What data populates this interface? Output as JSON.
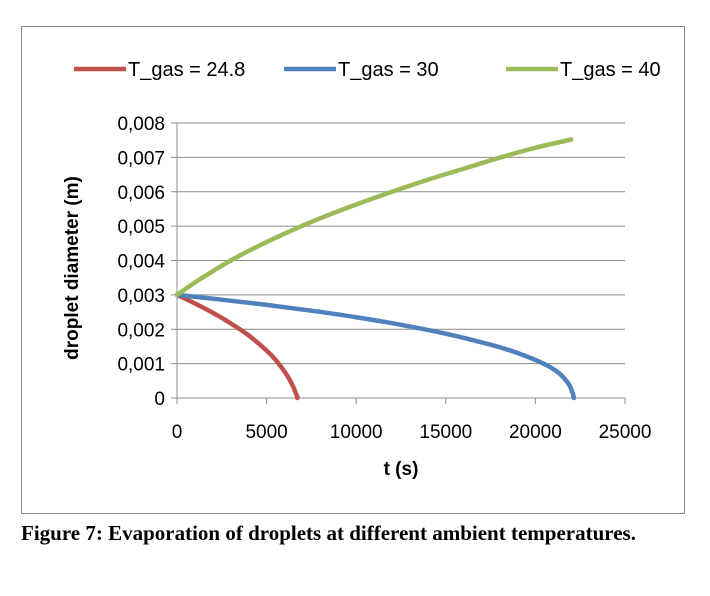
{
  "chart_data": {
    "type": "line",
    "title": "",
    "xlabel": "t (s)",
    "ylabel": "droplet diameter (m)",
    "xlim": [
      0,
      25000
    ],
    "ylim": [
      0,
      0.008
    ],
    "x_ticks": [
      0,
      5000,
      10000,
      15000,
      20000,
      25000
    ],
    "x_tick_labels": [
      "0",
      "5000",
      "10000",
      "15000",
      "20000",
      "25000"
    ],
    "y_ticks": [
      0,
      0.001,
      0.002,
      0.003,
      0.004,
      0.005,
      0.006,
      0.007,
      0.008
    ],
    "y_tick_labels": [
      "0",
      "0,001",
      "0,002",
      "0,003",
      "0,004",
      "0,005",
      "0,006",
      "0,007",
      "0,008"
    ],
    "grid": "horizontal",
    "legend_position": "top",
    "series": [
      {
        "name": "T_gas = 24.8",
        "color": "#c0504d",
        "x": [
          0,
          1000,
          2000,
          3000,
          4000,
          5000,
          5500,
          6000,
          6300,
          6500,
          6600,
          6700,
          6720
        ],
        "y": [
          0.003,
          0.00275,
          0.00248,
          0.00217,
          0.00182,
          0.00138,
          0.00111,
          0.00077,
          0.00052,
          0.00031,
          0.00018,
          5e-05,
          0
        ]
      },
      {
        "name": "T_gas = 30",
        "color": "#4f81bd",
        "x": [
          0,
          2500,
          5000,
          7500,
          10000,
          12500,
          15000,
          17500,
          19000,
          20500,
          21300,
          21800,
          22000,
          22100,
          22150
        ],
        "y": [
          0.003,
          0.00286,
          0.00271,
          0.00254,
          0.00235,
          0.00213,
          0.00187,
          0.00155,
          0.00131,
          0.00099,
          0.00073,
          0.00045,
          0.00026,
          0.0001,
          0
        ]
      },
      {
        "name": "T_gas = 40",
        "color": "#9bbb59",
        "x": [
          0,
          1000,
          2000,
          3000,
          4000,
          6000,
          8000,
          10000,
          12000,
          14000,
          16000,
          18000,
          20000,
          22000
        ],
        "y": [
          0.003,
          0.00336,
          0.00369,
          0.004,
          0.00428,
          0.00478,
          0.00523,
          0.00563,
          0.006,
          0.00635,
          0.00667,
          0.00699,
          0.00728,
          0.00752
        ]
      }
    ]
  },
  "caption": "Figure 7: Evaporation of droplets at different ambient temperatures."
}
